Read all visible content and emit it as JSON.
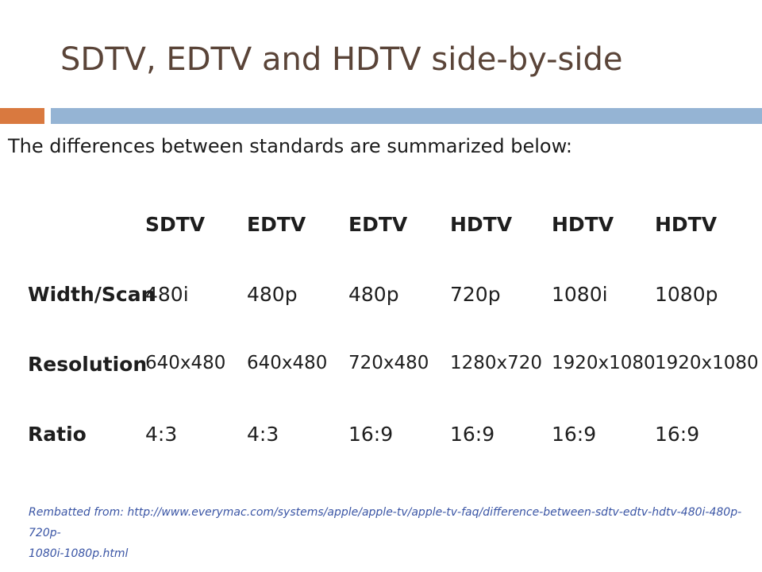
{
  "slide": {
    "title": "SDTV, EDTV and HDTV side-by-side",
    "intro": "The differences between standards are summarized below:",
    "accent_colors": {
      "title": "#5a4438",
      "orange_bar": "#d9793f",
      "blue_bar": "#95b4d4",
      "source_text": "#3a55a5"
    }
  },
  "table": {
    "columns": [
      "SDTV",
      "EDTV",
      "EDTV",
      "HDTV",
      "HDTV",
      "HDTV"
    ],
    "rows": [
      {
        "label": "Width/Scan",
        "values": [
          "480i",
          "480p",
          "480p",
          "720p",
          "1080i",
          "1080p"
        ]
      },
      {
        "label": "Resolution",
        "values": [
          "640x480",
          "640x480",
          "720x480",
          "1280x720",
          "1920x1080",
          "1920x1080"
        ]
      },
      {
        "label": "Ratio",
        "values": [
          "4:3",
          "4:3",
          "16:9",
          "16:9",
          "16:9",
          "16:9"
        ]
      }
    ]
  },
  "source": {
    "line1": "Rembatted from: http://www.everymac.com/systems/apple/apple-tv/apple-tv-faq/difference-between-sdtv-edtv-hdtv-480i-480p-720p-",
    "line2": "1080i-1080p.html"
  }
}
